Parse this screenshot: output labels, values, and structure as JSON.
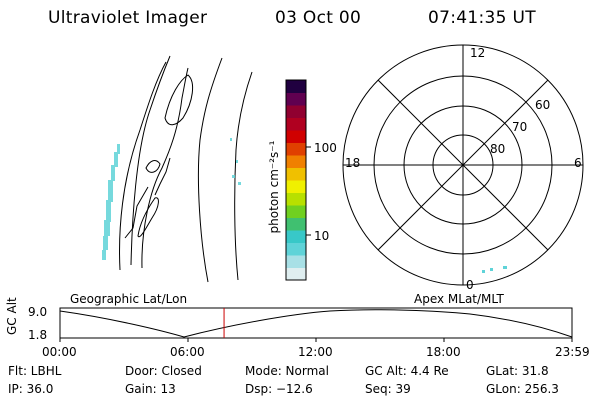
{
  "header": {
    "title": "Ultraviolet Imager",
    "date": "03 Oct 00",
    "time": "07:41:35 UT"
  },
  "panels": {
    "left_label": "Geographic Lat/Lon",
    "right_label": "Apex MLat/MLT"
  },
  "colorbar": {
    "unit_label": "photon cm⁻²s⁻¹",
    "ticks": [
      "100",
      "10"
    ],
    "colors": [
      "#dfeef0",
      "#a8e0e6",
      "#5fd3d8",
      "#38c8c8",
      "#40c070",
      "#70d020",
      "#b8e000",
      "#f0f000",
      "#f0c000",
      "#f08000",
      "#e04000",
      "#d00000",
      "#b00020",
      "#900030",
      "#600050",
      "#200040"
    ]
  },
  "polar_plot": {
    "mlt_labels": {
      "top": "12",
      "left": "18",
      "right": "6",
      "bottom": "0"
    },
    "lat_labels": [
      "60",
      "70",
      "80"
    ]
  },
  "altitude_plot": {
    "y_axis_label": "GC Alt",
    "y_ticks": [
      "9.0",
      "1.8"
    ],
    "x_ticks": [
      "00:00",
      "06:00",
      "12:00",
      "18:00",
      "23:59"
    ],
    "current_time_hours": 7.69
  },
  "info": {
    "filter": "Flt: LBHL",
    "ip": "IP: 36.0",
    "door": "Door: Closed",
    "gain": "Gain: 13",
    "mode": "Mode: Normal",
    "dsp": "Dsp:  −12.6",
    "gc_alt": "GC Alt: 4.4 Re",
    "seq": "Seq: 39",
    "glat": "GLat: 31.8",
    "glon": "GLon: 256.3"
  },
  "accent_colors": {
    "marker": "#cc0000",
    "aurora": "#5fd3d8"
  }
}
